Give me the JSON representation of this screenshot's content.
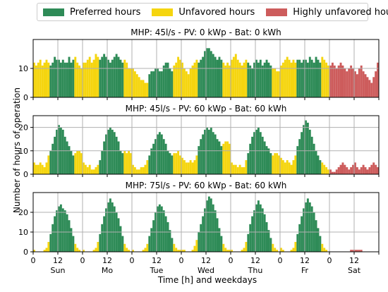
{
  "legend": [
    {
      "label": "Preferred hours",
      "color": "#2e8b57"
    },
    {
      "label": "Unfavored hours",
      "color": "#f5d50f"
    },
    {
      "label": "Highly unfavored hours",
      "color": "#cd5c5c"
    }
  ],
  "ylabel": "Number of hours of operation",
  "xlabel": "Time [h] and weekdays",
  "chart_data": [
    {
      "type": "bar",
      "title": "MHP: 45l/s - PV: 0 kWp - Bat: 0 kWh",
      "x": "hour of week 0-167, day starts Sunday",
      "ylim": [
        0,
        20
      ],
      "yticks": [
        0,
        10
      ],
      "xticks_hours": [
        0,
        12
      ],
      "days": [
        "Sun",
        "Mo",
        "Tue",
        "Wed",
        "Thu",
        "Fr",
        "Sat"
      ],
      "series": [
        {
          "name": "Preferred hours",
          "values": "see days_values"
        },
        {
          "name": "Unfavored hours",
          "values": "see days_values"
        },
        {
          "name": "Highly unfavored hours",
          "values": "see days_values"
        }
      ],
      "days_values": {
        "Sun": [
          12,
          11,
          12,
          13,
          11,
          12,
          13,
          12,
          11,
          12,
          14,
          13,
          13,
          12,
          13,
          12,
          12,
          14,
          12,
          13,
          14,
          12,
          11,
          10
        ],
        "Mo": [
          12,
          12,
          13,
          14,
          12,
          13,
          15,
          14,
          13,
          14,
          15,
          14,
          13,
          12,
          13,
          14,
          15,
          14,
          13,
          12,
          13,
          12,
          10,
          10
        ],
        "Tue": [
          10,
          9,
          8,
          7,
          6,
          6,
          5,
          5,
          8,
          9,
          9,
          10,
          10,
          9,
          9,
          11,
          12,
          12,
          10,
          9,
          11,
          12,
          14,
          13
        ],
        "Wed": [
          12,
          10,
          9,
          8,
          10,
          11,
          12,
          13,
          12,
          13,
          14,
          16,
          17,
          17,
          16,
          15,
          14,
          13,
          14,
          13,
          12,
          11,
          12,
          11
        ],
        "Thu": [
          13,
          14,
          15,
          13,
          12,
          11,
          12,
          13,
          12,
          11,
          10,
          12,
          13,
          12,
          13,
          11,
          12,
          13,
          12,
          11,
          10,
          10,
          9,
          9
        ],
        "Fr": [
          11,
          12,
          13,
          14,
          13,
          12,
          13,
          12,
          13,
          13,
          12,
          13,
          13,
          12,
          14,
          13,
          12,
          14,
          13,
          12,
          14,
          13,
          12,
          11
        ],
        "Sat": [
          11,
          12,
          11,
          10,
          11,
          12,
          11,
          10,
          9,
          10,
          11,
          10,
          9,
          8,
          10,
          11,
          9,
          8,
          7,
          6,
          5,
          7,
          9,
          12
        ]
      },
      "series_rule": "hours 0-7 and 20-23 Unfavored (yellow), hours 8-19 Preferred (green); Saturday all Highly unfavored (red)"
    },
    {
      "type": "bar",
      "title": "MHP: 45l/s - PV: 60 kWp - Bat: 60 kWh",
      "ylim": [
        0,
        25
      ],
      "yticks": [
        0,
        10,
        20
      ],
      "days_values": {
        "Sun": [
          5,
          4,
          4,
          5,
          4,
          3,
          5,
          8,
          10,
          13,
          16,
          19,
          21,
          20,
          19,
          16,
          14,
          12,
          10,
          8,
          9,
          10,
          10,
          9
        ],
        "Mo": [
          5,
          4,
          3,
          4,
          2,
          2,
          3,
          4,
          6,
          10,
          14,
          17,
          19,
          20,
          19,
          18,
          16,
          14,
          10,
          9,
          10,
          9,
          10,
          9
        ],
        "Tue": [
          4,
          3,
          2,
          2,
          3,
          3,
          4,
          6,
          8,
          11,
          13,
          15,
          17,
          18,
          17,
          15,
          13,
          10,
          9,
          8,
          9,
          9,
          10,
          8
        ],
        "Wed": [
          7,
          6,
          5,
          5,
          6,
          5,
          6,
          8,
          12,
          15,
          17,
          19,
          20,
          19,
          20,
          18,
          17,
          15,
          14,
          12,
          13,
          14,
          14,
          13
        ],
        "Thu": [
          5,
          4,
          4,
          3,
          4,
          3,
          3,
          6,
          9,
          13,
          16,
          18,
          19,
          20,
          18,
          16,
          14,
          12,
          11,
          9,
          8,
          9,
          9,
          8
        ],
        "Fr": [
          7,
          6,
          5,
          6,
          5,
          4,
          6,
          8,
          12,
          15,
          18,
          21,
          23,
          22,
          19,
          16,
          13,
          10,
          8,
          6,
          5,
          4,
          3,
          2
        ],
        "Sat": [
          2,
          1,
          1,
          2,
          3,
          4,
          5,
          4,
          3,
          2,
          3,
          4,
          5,
          3,
          2,
          3,
          4,
          3,
          2,
          3,
          4,
          5,
          4,
          3
        ]
      }
    },
    {
      "type": "bar",
      "title": "MHP: 75l/s - PV: 60 kWp - Bat: 60 kWh",
      "ylim": [
        0,
        30
      ],
      "yticks": [
        0,
        10,
        20
      ],
      "days_values": {
        "Sun": [
          1,
          0,
          0,
          0,
          0,
          1,
          2,
          5,
          9,
          14,
          18,
          21,
          23,
          24,
          22,
          21,
          19,
          16,
          12,
          8,
          4,
          2,
          1,
          0
        ],
        "Mo": [
          1,
          0,
          0,
          0,
          0,
          1,
          2,
          5,
          9,
          14,
          18,
          22,
          25,
          27,
          25,
          23,
          20,
          17,
          13,
          8,
          4,
          2,
          1,
          0
        ],
        "Tue": [
          1,
          0,
          0,
          0,
          0,
          1,
          2,
          4,
          8,
          12,
          16,
          20,
          23,
          24,
          23,
          21,
          18,
          15,
          11,
          7,
          4,
          2,
          1,
          1
        ],
        "Wed": [
          1,
          1,
          0,
          0,
          0,
          1,
          3,
          6,
          10,
          14,
          18,
          22,
          26,
          28,
          27,
          24,
          21,
          17,
          12,
          8,
          4,
          2,
          1,
          1
        ],
        "Thu": [
          1,
          0,
          0,
          0,
          0,
          1,
          2,
          5,
          9,
          14,
          18,
          21,
          24,
          26,
          24,
          22,
          19,
          15,
          11,
          7,
          4,
          2,
          1,
          0
        ],
        "Fr": [
          2,
          1,
          0,
          0,
          0,
          1,
          2,
          5,
          9,
          14,
          18,
          22,
          25,
          27,
          25,
          23,
          20,
          16,
          12,
          8,
          4,
          2,
          1,
          0
        ],
        "Sat": [
          0,
          0,
          0,
          0,
          0,
          0,
          0,
          0,
          0,
          0,
          1,
          1,
          1,
          1,
          1,
          1,
          0,
          0,
          0,
          0,
          0,
          0,
          0,
          0
        ]
      }
    }
  ]
}
